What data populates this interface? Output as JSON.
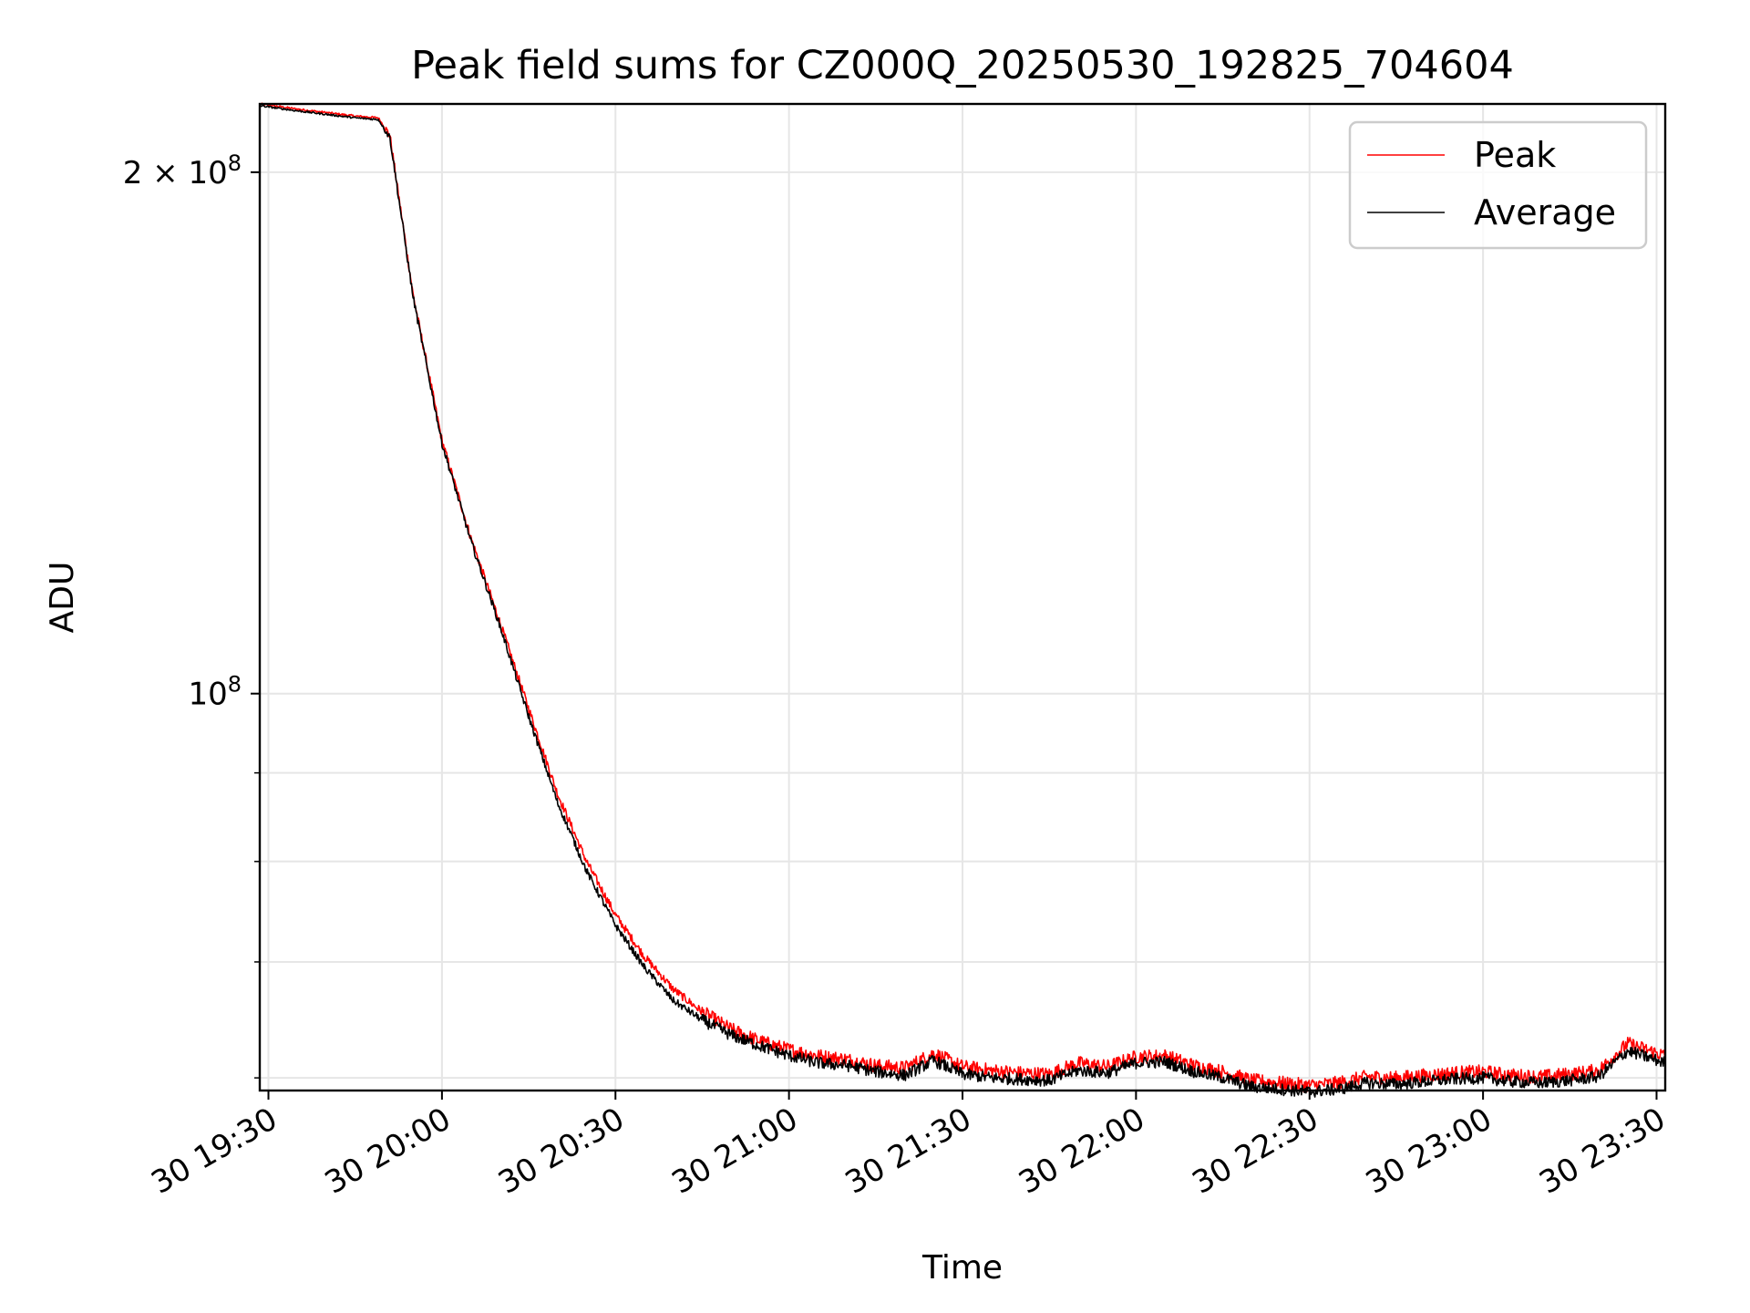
{
  "chart_data": {
    "type": "line",
    "title": "Peak field sums for CZ000Q_20250530_192825_704604",
    "xlabel": "Time",
    "ylabel": "ADU",
    "y_scale": "log",
    "ylim": [
      59000000,
      219000000
    ],
    "xlim": [
      "2025-05-30 19:28:30",
      "2025-05-30 23:31:30"
    ],
    "grid": true,
    "legend_placement": "top-right",
    "x_ticks": [
      {
        "value": "2025-05-30 19:30",
        "label": "30 19:30"
      },
      {
        "value": "2025-05-30 20:00",
        "label": "30 20:00"
      },
      {
        "value": "2025-05-30 20:30",
        "label": "30 20:30"
      },
      {
        "value": "2025-05-30 21:00",
        "label": "30 21:00"
      },
      {
        "value": "2025-05-30 21:30",
        "label": "30 21:30"
      },
      {
        "value": "2025-05-30 22:00",
        "label": "30 22:00"
      },
      {
        "value": "2025-05-30 22:30",
        "label": "30 22:30"
      },
      {
        "value": "2025-05-30 23:00",
        "label": "30 23:00"
      },
      {
        "value": "2025-05-30 23:30",
        "label": "30 23:30"
      }
    ],
    "y_major_ticks": [
      {
        "value": 100000000,
        "base": "10",
        "exp": "8",
        "mant": ""
      },
      {
        "value": 200000000,
        "base": "10",
        "exp": "8",
        "mant": "2 × "
      }
    ],
    "y_minor_ticks": [
      60000000,
      70000000,
      80000000,
      90000000,
      300000000
    ],
    "series": [
      {
        "name": "Peak",
        "color": "#ff0000",
        "x": [
          "2025-05-30 19:28:30",
          "2025-05-30 19:35:00",
          "2025-05-30 19:45:00",
          "2025-05-30 19:49:00",
          "2025-05-30 19:51:00",
          "2025-05-30 19:55:00",
          "2025-05-30 20:00:00",
          "2025-05-30 20:05:00",
          "2025-05-30 20:10:00",
          "2025-05-30 20:15:00",
          "2025-05-30 20:20:00",
          "2025-05-30 20:25:00",
          "2025-05-30 20:30:00",
          "2025-05-30 20:35:00",
          "2025-05-30 20:40:00",
          "2025-05-30 20:45:00",
          "2025-05-30 20:50:00",
          "2025-05-30 20:55:00",
          "2025-05-30 21:00:00",
          "2025-05-30 21:05:00",
          "2025-05-30 21:10:00",
          "2025-05-30 21:15:00",
          "2025-05-30 21:20:00",
          "2025-05-30 21:25:00",
          "2025-05-30 21:30:00",
          "2025-05-30 21:35:00",
          "2025-05-30 21:40:00",
          "2025-05-30 21:45:00",
          "2025-05-30 21:50:00",
          "2025-05-30 21:55:00",
          "2025-05-30 22:00:00",
          "2025-05-30 22:05:00",
          "2025-05-30 22:10:00",
          "2025-05-30 22:15:00",
          "2025-05-30 22:20:00",
          "2025-05-30 22:25:00",
          "2025-05-30 22:30:00",
          "2025-05-30 22:35:00",
          "2025-05-30 22:40:00",
          "2025-05-30 22:45:00",
          "2025-05-30 22:50:00",
          "2025-05-30 22:55:00",
          "2025-05-30 23:00:00",
          "2025-05-30 23:05:00",
          "2025-05-30 23:10:00",
          "2025-05-30 23:15:00",
          "2025-05-30 23:20:00",
          "2025-05-30 23:25:00",
          "2025-05-30 23:31:30"
        ],
        "y": [
          219000000,
          217500000,
          215500000,
          215000000,
          210000000,
          170000000,
          140000000,
          123000000,
          110000000,
          98000000,
          87500000,
          80000000,
          74500000,
          70500000,
          67500000,
          65500000,
          64000000,
          63000000,
          62300000,
          61800000,
          61500000,
          61000000,
          60800000,
          62000000,
          60900000,
          60600000,
          60400000,
          60300000,
          61200000,
          60900000,
          61700000,
          61800000,
          61000000,
          60500000,
          59800000,
          59600000,
          59400000,
          59600000,
          60100000,
          60000000,
          60200000,
          60400000,
          60500000,
          60200000,
          60100000,
          60300000,
          60600000,
          62800000,
          61800000
        ]
      },
      {
        "name": "Average",
        "color": "#000000",
        "x": [
          "2025-05-30 19:28:30",
          "2025-05-30 19:35:00",
          "2025-05-30 19:45:00",
          "2025-05-30 19:49:00",
          "2025-05-30 19:51:00",
          "2025-05-30 19:55:00",
          "2025-05-30 20:00:00",
          "2025-05-30 20:05:00",
          "2025-05-30 20:10:00",
          "2025-05-30 20:15:00",
          "2025-05-30 20:20:00",
          "2025-05-30 20:25:00",
          "2025-05-30 20:30:00",
          "2025-05-30 20:35:00",
          "2025-05-30 20:40:00",
          "2025-05-30 20:45:00",
          "2025-05-30 20:50:00",
          "2025-05-30 20:55:00",
          "2025-05-30 21:00:00",
          "2025-05-30 21:05:00",
          "2025-05-30 21:10:00",
          "2025-05-30 21:15:00",
          "2025-05-30 21:20:00",
          "2025-05-30 21:25:00",
          "2025-05-30 21:30:00",
          "2025-05-30 21:35:00",
          "2025-05-30 21:40:00",
          "2025-05-30 21:45:00",
          "2025-05-30 21:50:00",
          "2025-05-30 21:55:00",
          "2025-05-30 22:00:00",
          "2025-05-30 22:05:00",
          "2025-05-30 22:10:00",
          "2025-05-30 22:15:00",
          "2025-05-30 22:20:00",
          "2025-05-30 22:25:00",
          "2025-05-30 22:30:00",
          "2025-05-30 22:35:00",
          "2025-05-30 22:40:00",
          "2025-05-30 22:45:00",
          "2025-05-30 22:50:00",
          "2025-05-30 22:55:00",
          "2025-05-30 23:00:00",
          "2025-05-30 23:05:00",
          "2025-05-30 23:10:00",
          "2025-05-30 23:15:00",
          "2025-05-30 23:20:00",
          "2025-05-30 23:25:00",
          "2025-05-30 23:31:30"
        ],
        "y": [
          218500000,
          217000000,
          215000000,
          214500000,
          209500000,
          169500000,
          139500000,
          122500000,
          109500000,
          97000000,
          86500000,
          79000000,
          73500000,
          69500000,
          66500000,
          64800000,
          63500000,
          62600000,
          61800000,
          61200000,
          61000000,
          60500000,
          60200000,
          61400000,
          60300000,
          60000000,
          59900000,
          59800000,
          60600000,
          60400000,
          61200000,
          61300000,
          60500000,
          60000000,
          59300000,
          59100000,
          58900000,
          59100000,
          59600000,
          59500000,
          59700000,
          59900000,
          60000000,
          59700000,
          59600000,
          59800000,
          60100000,
          62200000,
          61200000
        ]
      }
    ]
  }
}
